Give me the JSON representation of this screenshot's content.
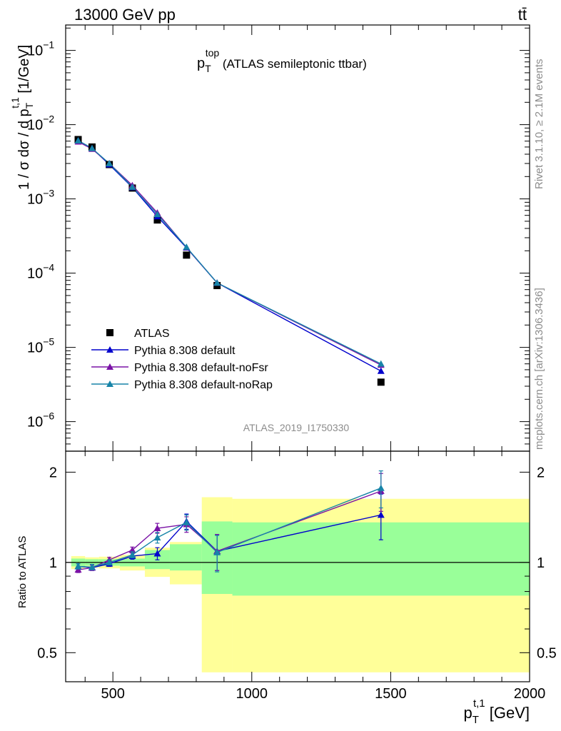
{
  "header": {
    "left": "13000 GeV pp",
    "right": "tt̄"
  },
  "side": {
    "rivet": "Rivet 3.1.10, ≥ 2.1M events",
    "site": "mcplots.cern.ch [arXiv:1306.3436]"
  },
  "analysis_id": "ATLAS_2019_I1750330",
  "chart_data": [
    {
      "type": "line",
      "panel": "main",
      "title": {
        "main": "p",
        "sub": "T",
        "sup": "top",
        "rest": " (ATLAS semileptonic ttbar)"
      },
      "ylabel": {
        "a": "1 / σ dσ / d p",
        "sub": "T",
        "sup": "t,1",
        "b": " [1/GeV]"
      },
      "yscale": "log",
      "ylim": [
        4e-07,
        0.22
      ],
      "xlim": [
        330,
        2000
      ],
      "y_ticks": [
        {
          "v": 1e-06,
          "base": "10",
          "exp": "−6"
        },
        {
          "v": 1e-05,
          "base": "10",
          "exp": "−5"
        },
        {
          "v": 0.0001,
          "base": "10",
          "exp": "−4"
        },
        {
          "v": 0.001,
          "base": "10",
          "exp": "−3"
        },
        {
          "v": 0.01,
          "base": "10",
          "exp": "−2"
        },
        {
          "v": 0.1,
          "base": "10",
          "exp": "−1"
        }
      ],
      "legend_position": "lower-left",
      "x": [
        375,
        425,
        487,
        570,
        660,
        765,
        875,
        1465
      ],
      "series": [
        {
          "name": "ATLAS",
          "marker": "square",
          "color": "#000000",
          "values": [
            0.0063,
            0.005,
            0.0029,
            0.0014,
            0.00052,
            0.000175,
            6.8e-05,
            3.4e-06
          ]
        },
        {
          "name": "Pythia 8.308 default",
          "marker": "triangle",
          "color": "#0000cc",
          "values": [
            0.0061,
            0.0048,
            0.0029,
            0.00143,
            0.00058,
            0.00022,
            7.4e-05,
            4.8e-06
          ]
        },
        {
          "name": "Pythia 8.308 default-noFsr",
          "marker": "triangle",
          "color": "#7a12a6",
          "values": [
            0.0059,
            0.0047,
            0.003,
            0.00152,
            0.00065,
            0.000222,
            7.4e-05,
            5.8e-06
          ]
        },
        {
          "name": "Pythia 8.308 default-noRap",
          "marker": "triangle",
          "color": "#1784a8",
          "values": [
            0.0061,
            0.0048,
            0.003,
            0.00145,
            0.00062,
            0.000224,
            7.4e-05,
            6e-06
          ]
        }
      ]
    },
    {
      "type": "line",
      "panel": "ratio",
      "ylabel": "Ratio to ATLAS",
      "yscale": "log",
      "ylim": [
        0.4,
        2.35
      ],
      "y_ticks": [
        {
          "v": 0.5,
          "label": "0.5"
        },
        {
          "v": 1,
          "label": "1"
        },
        {
          "v": 2,
          "label": "2"
        }
      ],
      "xlim": [
        330,
        2000
      ],
      "x_ticks": [
        {
          "v": 500,
          "label": "500"
        },
        {
          "v": 1000,
          "label": "1000"
        },
        {
          "v": 1500,
          "label": "1500"
        },
        {
          "v": 2000,
          "label": "2000"
        }
      ],
      "xlabel": {
        "a": "p",
        "sub": "T",
        "sup": "t,1",
        "b": " [GeV]"
      },
      "bins": [
        {
          "lo": 350,
          "hi": 400,
          "stat": [
            0.97,
            1.03
          ],
          "total": [
            0.95,
            1.05
          ]
        },
        {
          "lo": 400,
          "hi": 450,
          "stat": [
            0.975,
            1.025
          ],
          "total": [
            0.96,
            1.04
          ]
        },
        {
          "lo": 450,
          "hi": 525,
          "stat": [
            0.975,
            1.025
          ],
          "total": [
            0.955,
            1.045
          ]
        },
        {
          "lo": 525,
          "hi": 615,
          "stat": [
            0.97,
            1.03
          ],
          "total": [
            0.94,
            1.06
          ]
        },
        {
          "lo": 615,
          "hi": 705,
          "stat": [
            0.95,
            1.1
          ],
          "total": [
            0.895,
            1.12
          ]
        },
        {
          "lo": 705,
          "hi": 820,
          "stat": [
            0.94,
            1.15
          ],
          "total": [
            0.845,
            1.17
          ]
        },
        {
          "lo": 820,
          "hi": 930,
          "stat": [
            0.785,
            1.37
          ],
          "total": [
            0.43,
            1.65
          ]
        },
        {
          "lo": 930,
          "hi": 2000,
          "stat": [
            0.775,
            1.36
          ],
          "total": [
            0.43,
            1.63
          ]
        }
      ],
      "x": [
        375,
        425,
        487,
        570,
        660,
        765,
        875,
        1465
      ],
      "series": [
        {
          "name": "Pythia 8.308 default",
          "color": "#0000cc",
          "values": [
            0.97,
            0.96,
            0.99,
            1.05,
            1.07,
            1.37,
            1.09,
            1.44
          ],
          "err": [
            0.02,
            0.02,
            0.02,
            0.025,
            0.05,
            0.08,
            0.15,
            0.25
          ]
        },
        {
          "name": "Pythia 8.308 default-noFsr",
          "color": "#7a12a6",
          "values": [
            0.945,
            0.96,
            1.02,
            1.1,
            1.3,
            1.34,
            1.09,
            1.73
          ],
          "err": [
            0.02,
            0.02,
            0.02,
            0.025,
            0.05,
            0.08,
            0.15,
            0.25
          ]
        },
        {
          "name": "Pythia 8.308 default-noRap",
          "color": "#1784a8",
          "values": [
            0.97,
            0.965,
            1.0,
            1.06,
            1.21,
            1.36,
            1.08,
            1.77
          ],
          "err": [
            0.02,
            0.02,
            0.02,
            0.025,
            0.05,
            0.08,
            0.15,
            0.25
          ]
        }
      ]
    }
  ]
}
